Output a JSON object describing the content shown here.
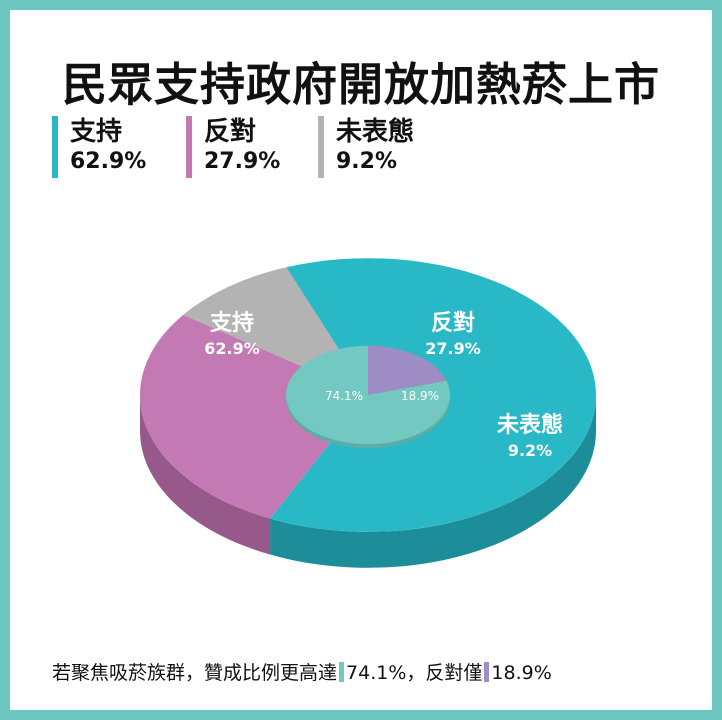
{
  "title": "民眾支持政府開放加熱菸上市",
  "legend": [
    {
      "label": "支持",
      "value": "62.9%",
      "color": "#29b8c6"
    },
    {
      "label": "反對",
      "value": "27.9%",
      "color": "#c379b3"
    },
    {
      "label": "未表態",
      "value": "9.2%",
      "color": "#b3b3b3"
    }
  ],
  "chart_data": {
    "type": "pie",
    "outer_ring": {
      "categories": [
        "支持",
        "反對",
        "未表態"
      ],
      "values": [
        62.9,
        27.9,
        9.2
      ],
      "labels": [
        "62.9%",
        "27.9%",
        "9.2%"
      ],
      "colors": [
        "#29b8c6",
        "#c379b3",
        "#b3b3b3"
      ],
      "side_colors": [
        "#1d8e99",
        "#96598a",
        "#8c8c8c"
      ]
    },
    "inner_ring": {
      "categories": [
        "贊成",
        "反對"
      ],
      "values": [
        74.1,
        18.9
      ],
      "labels": [
        "74.1%",
        "18.9%"
      ],
      "colors": [
        "#73c9c1",
        "#9e8cc4"
      ]
    }
  },
  "caption": {
    "text_before": "若聚焦吸菸族群，贊成比例更高達",
    "value_support": "74.1%",
    "text_middle": "，反對僅",
    "value_oppose": "18.9%",
    "bar_support_color": "#73c9c1",
    "bar_oppose_color": "#9e8cc4"
  }
}
